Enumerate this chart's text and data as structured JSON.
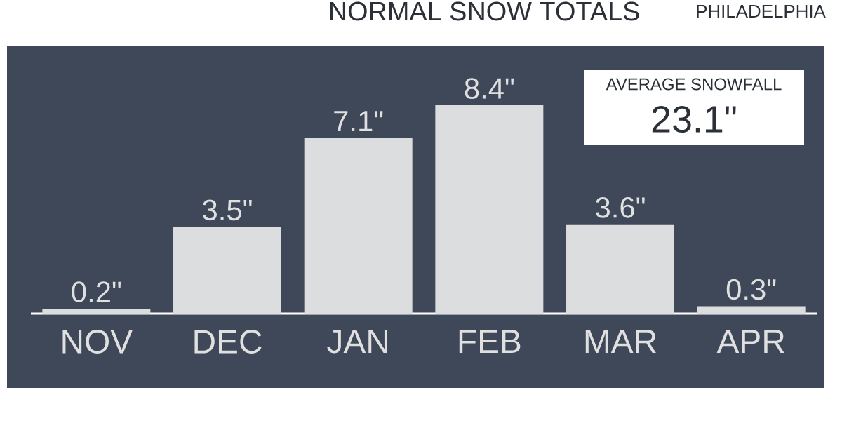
{
  "chart_data": {
    "type": "bar",
    "title": "NORMAL SNOW TOTALS",
    "subtitle": "PHILADELPHIA",
    "categories": [
      "NOV",
      "DEC",
      "JAN",
      "FEB",
      "MAR",
      "APR"
    ],
    "values": [
      0.2,
      3.5,
      7.1,
      8.4,
      3.6,
      0.3
    ],
    "value_labels": [
      "0.2\"",
      "3.5\"",
      "7.1\"",
      "8.4\"",
      "3.6\"",
      "0.3\""
    ],
    "color": "#dcdddf",
    "annotations": [
      "AVERAGE SNOWFALL",
      "23.1\""
    ]
  }
}
